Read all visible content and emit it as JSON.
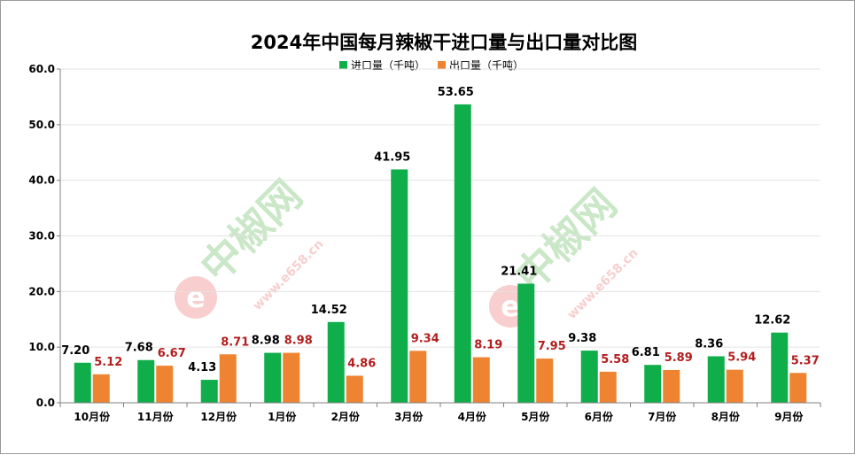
{
  "watermark": {
    "brand": "中椒网",
    "site": "www.e658.cn",
    "logo_letter": "e",
    "colors": {
      "green": "#9fd39a",
      "red": "#f2a7a7"
    }
  },
  "chart_data": {
    "type": "bar",
    "title": "2024年中国每月辣椒干进口量与出口量对比图",
    "categories": [
      "10月份",
      "11月份",
      "12月份",
      "1月份",
      "2月份",
      "3月份",
      "4月份",
      "5月份",
      "6月份",
      "7月份",
      "8月份",
      "9月份"
    ],
    "series": [
      {
        "name": "进口量（千吨）",
        "color": "#0fae4b",
        "label_color": "#000000",
        "values": [
          7.2,
          7.68,
          4.13,
          8.98,
          14.52,
          41.95,
          53.65,
          21.41,
          9.38,
          6.81,
          8.36,
          12.62
        ],
        "labels": [
          "7.20",
          "7.68",
          "4.13",
          "8.98",
          "14.52",
          "41.95",
          "53.65",
          "21.41",
          "9.38",
          "6.81",
          "8.36",
          "12.62"
        ]
      },
      {
        "name": "出口量（千吨）",
        "color": "#ee8432",
        "label_color": "#b21d1d",
        "values": [
          5.12,
          6.67,
          8.71,
          8.98,
          4.86,
          9.34,
          8.19,
          7.95,
          5.58,
          5.89,
          5.94,
          5.37
        ],
        "labels": [
          "5.12",
          "6.67",
          "8.71",
          "8.98",
          "4.86",
          "9.34",
          "8.19",
          "7.95",
          "5.58",
          "5.89",
          "5.94",
          "5.37"
        ]
      }
    ],
    "ylim": [
      0,
      60
    ],
    "yticks": [
      "0.0",
      "10.0",
      "20.0",
      "30.0",
      "40.0",
      "50.0",
      "60.0"
    ],
    "ytick_values": [
      0,
      10,
      20,
      30,
      40,
      50,
      60
    ],
    "grid": true,
    "legend_position": "top-center"
  }
}
